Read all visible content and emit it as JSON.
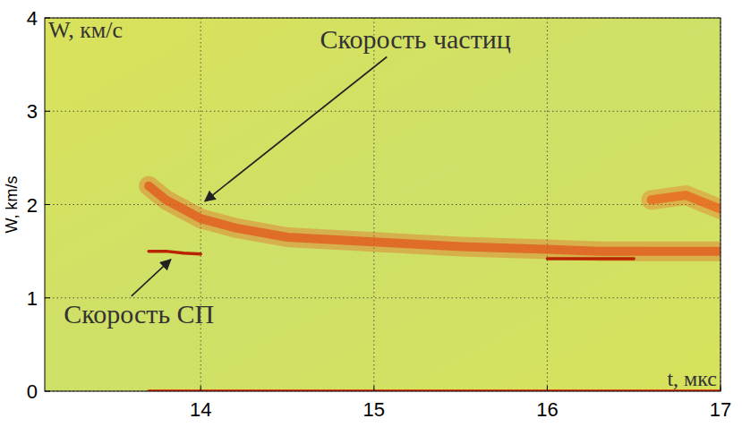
{
  "chart_data": {
    "type": "line",
    "xlabel": "t, мкс",
    "ylabel": "W, km/s",
    "ylabel_inner": "W, км/с",
    "annotations": [
      {
        "text": "Скорость частиц",
        "x": 14.0,
        "y": 2.0
      },
      {
        "text": "Скорость СП",
        "x": 13.85,
        "y": 1.45
      }
    ],
    "x": [
      13.7,
      13.8,
      13.9,
      14.0,
      14.2,
      14.5,
      15.0,
      15.5,
      16.0,
      16.3,
      16.5,
      16.6,
      16.8,
      17.0
    ],
    "series": [
      {
        "color": "#e2571c",
        "line_style": "band",
        "values": [
          2.2,
          2.05,
          1.95,
          1.85,
          1.75,
          1.65,
          1.6,
          1.55,
          1.52,
          1.5,
          1.5,
          1.5,
          1.5,
          1.5
        ]
      },
      {
        "color": "#e8641e",
        "line_style": "band",
        "values": [
          null,
          null,
          null,
          null,
          null,
          null,
          null,
          null,
          null,
          null,
          null,
          2.05,
          2.1,
          1.95
        ]
      },
      {
        "color": "#b82400",
        "line_style": "solid",
        "values": [
          1.5,
          1.5,
          1.48,
          1.47,
          null,
          null,
          null,
          null,
          1.42,
          1.42,
          1.42,
          null,
          null,
          null
        ]
      },
      {
        "color": "#e02000",
        "line_style": "solid",
        "values": [
          0,
          0,
          0,
          0,
          0,
          0,
          0,
          0,
          0,
          0,
          0,
          0,
          0,
          0
        ]
      }
    ],
    "xlim": [
      13.1,
      17.0
    ],
    "ylim": [
      0,
      4
    ],
    "xticks": [
      14,
      15,
      16,
      17
    ],
    "yticks": [
      0,
      1,
      2,
      3,
      4
    ],
    "grid": true
  }
}
